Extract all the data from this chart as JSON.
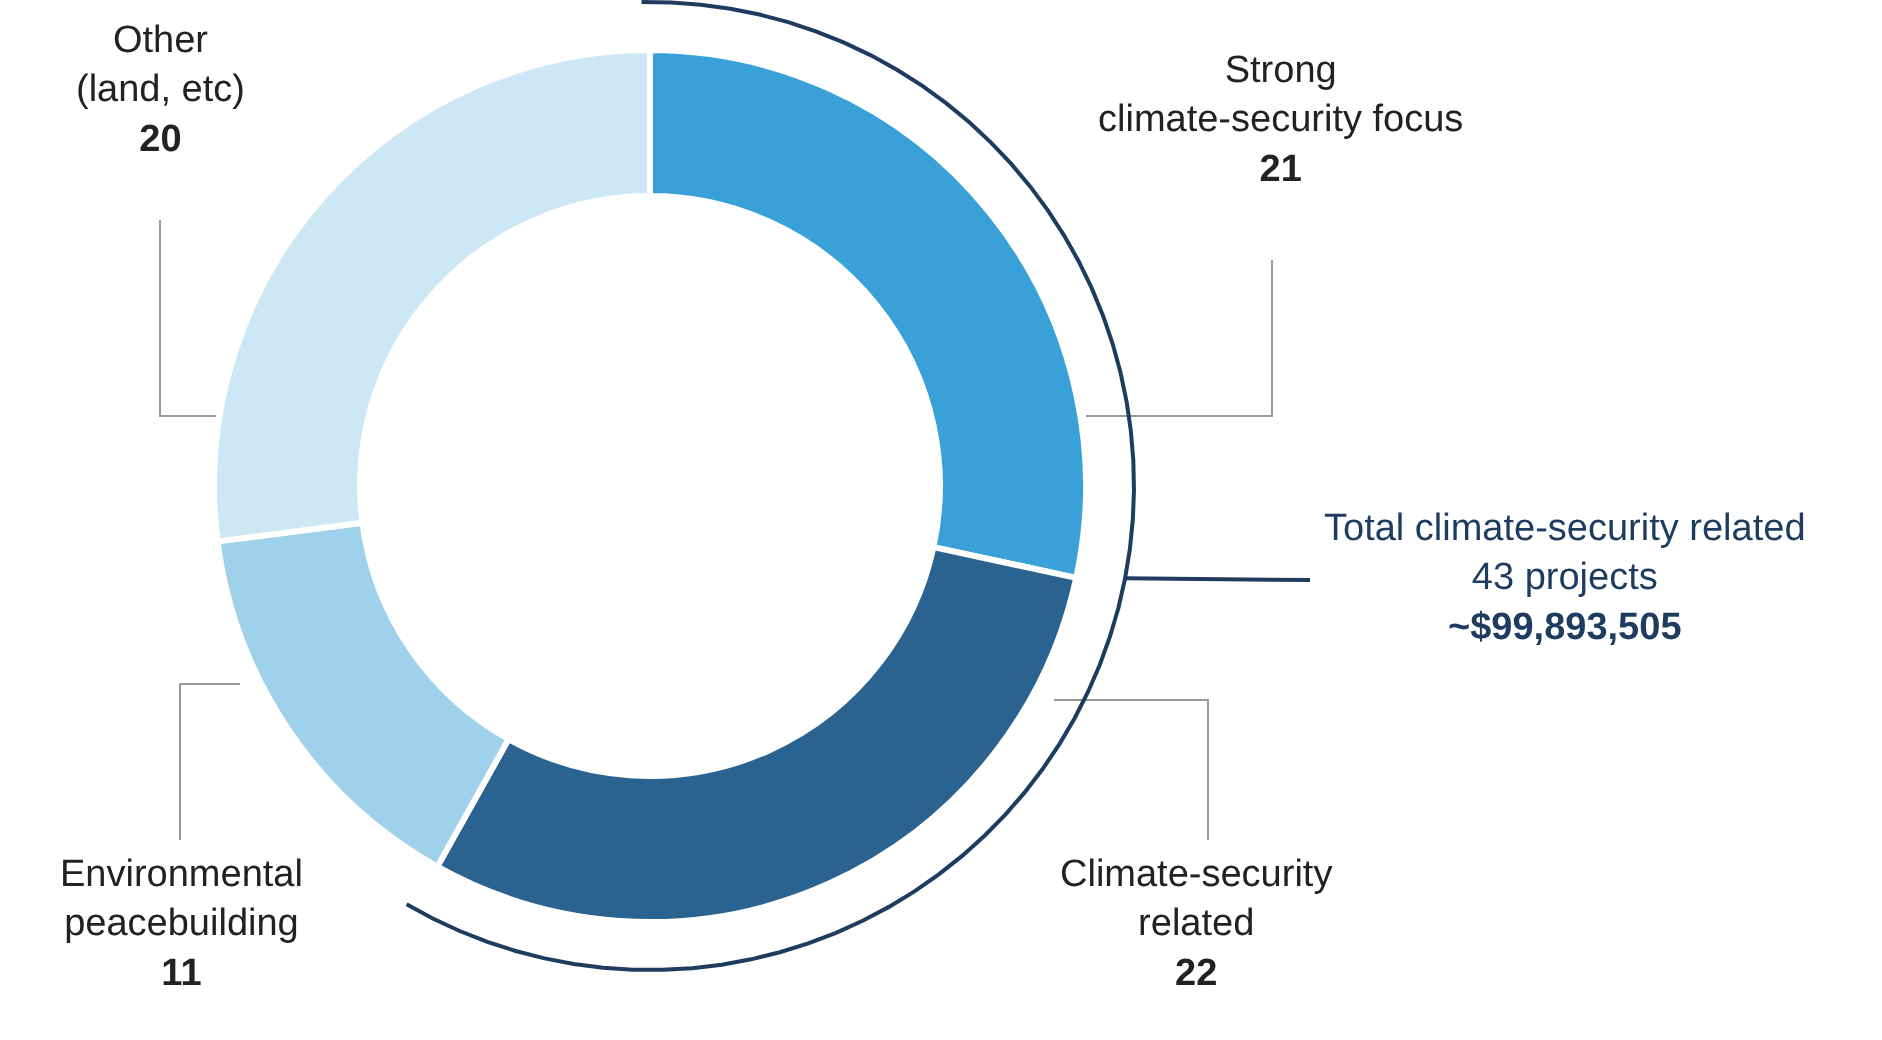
{
  "chart_data": {
    "type": "donut",
    "categories": [
      "Strong\nclimate-security focus",
      "Climate-security\nrelated",
      "Environmental\npeacebuilding",
      "Other\n(land, etc)"
    ],
    "values": [
      21,
      22,
      11,
      20
    ],
    "colors": [
      "#3aa1d8",
      "#2a6290",
      "#a0d1eb",
      "#cde7f5"
    ],
    "data_labels": true,
    "legend": false,
    "annotations": [
      "Total climate-security related\n43 projects\n~$99,893,505"
    ]
  }
}
